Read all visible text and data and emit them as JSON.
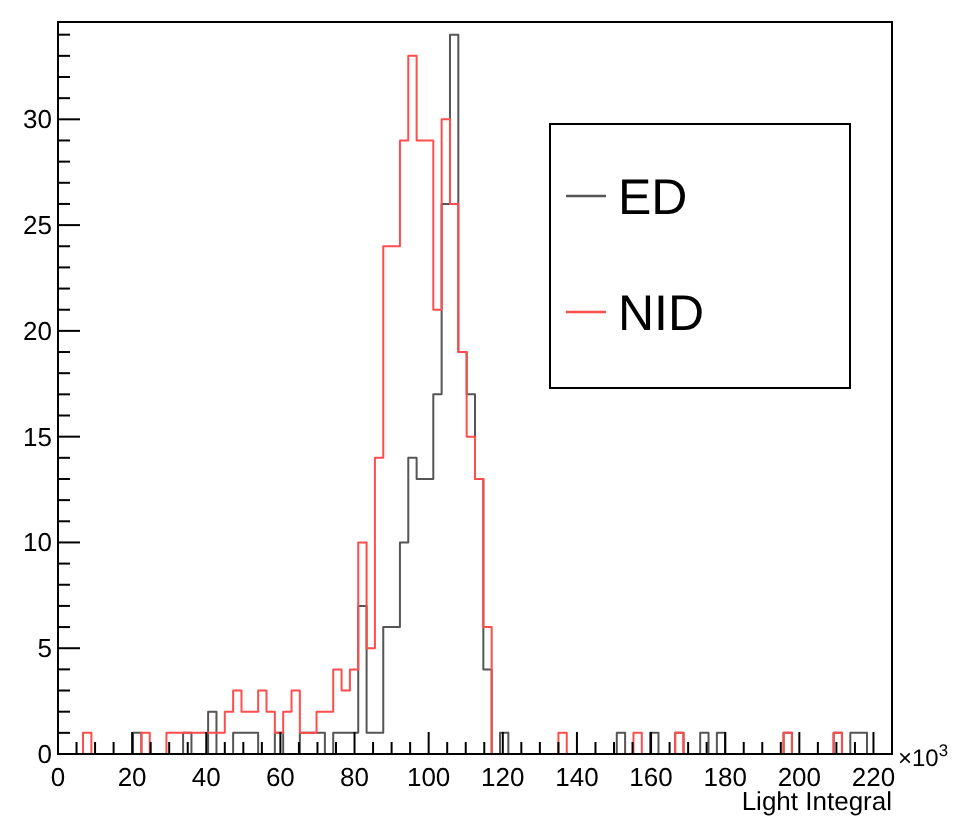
{
  "chart_data": {
    "type": "histogram",
    "xlabel": "Light Integral",
    "annotations": [
      "×10$^{3}$"
    ],
    "legend": "top right",
    "xlim": [
      0,
      225
    ],
    "ylim": [
      0,
      34.6
    ],
    "xticks": [
      0,
      {
        "value": 5,
        "label": null
      },
      {
        "value": 10,
        "label": null
      },
      {
        "value": 15,
        "label": null
      },
      20,
      {
        "value": 25,
        "label": null
      },
      {
        "value": 30,
        "label": null
      },
      {
        "value": 35,
        "label": null
      },
      40,
      {
        "value": 45,
        "label": null
      },
      {
        "value": 50,
        "label": null
      },
      {
        "value": 55,
        "label": null
      },
      60,
      {
        "value": 65,
        "label": null
      },
      {
        "value": 70,
        "label": null
      },
      {
        "value": 75,
        "label": null
      },
      80,
      {
        "value": 85,
        "label": null
      },
      {
        "value": 90,
        "label": null
      },
      {
        "value": 95,
        "label": null
      },
      100,
      {
        "value": 105,
        "label": null
      },
      {
        "value": 110,
        "label": null
      },
      {
        "value": 115,
        "label": null
      },
      120,
      {
        "value": 125,
        "label": null
      },
      {
        "value": 130,
        "label": null
      },
      {
        "value": 135,
        "label": null
      },
      140,
      {
        "value": 145,
        "label": null
      },
      {
        "value": 150,
        "label": null
      },
      {
        "value": 155,
        "label": null
      },
      160,
      {
        "value": 165,
        "label": null
      },
      {
        "value": 170,
        "label": null
      },
      {
        "value": 175,
        "label": null
      },
      180,
      {
        "value": 185,
        "label": null
      },
      {
        "value": 190,
        "label": null
      },
      {
        "value": 195,
        "label": null
      },
      200,
      {
        "value": 205,
        "label": null
      },
      {
        "value": 210,
        "label": null
      },
      {
        "value": 215,
        "label": null
      },
      220
    ],
    "yticks": [
      0,
      {
        "value": 1,
        "label": null
      },
      {
        "value": 2,
        "label": null
      },
      {
        "value": 3,
        "label": null
      },
      {
        "value": 4,
        "label": null
      },
      5,
      {
        "value": 6,
        "label": null
      },
      {
        "value": 7,
        "label": null
      },
      {
        "value": 8,
        "label": null
      },
      {
        "value": 9,
        "label": null
      },
      10,
      {
        "value": 11,
        "label": null
      },
      {
        "value": 12,
        "label": null
      },
      {
        "value": 13,
        "label": null
      },
      {
        "value": 14,
        "label": null
      },
      15,
      {
        "value": 16,
        "label": null
      },
      {
        "value": 17,
        "label": null
      },
      {
        "value": 18,
        "label": null
      },
      {
        "value": 19,
        "label": null
      },
      20,
      {
        "value": 21,
        "label": null
      },
      {
        "value": 22,
        "label": null
      },
      {
        "value": 23,
        "label": null
      },
      {
        "value": 24,
        "label": null
      },
      25,
      {
        "value": 26,
        "label": null
      },
      {
        "value": 27,
        "label": null
      },
      {
        "value": 28,
        "label": null
      },
      {
        "value": 29,
        "label": null
      },
      30,
      {
        "value": 31,
        "label": null
      },
      {
        "value": 32,
        "label": null
      },
      {
        "value": 33,
        "label": null
      },
      {
        "value": 34,
        "label": null
      }
    ],
    "bins": [
      0,
      2.25,
      4.5,
      6.75,
      9,
      11.25,
      13.5,
      15.75,
      18,
      20.25,
      22.5,
      24.75,
      27,
      29.25,
      31.5,
      33.75,
      36,
      38.25,
      40.5,
      42.75,
      45,
      47.25,
      49.5,
      51.75,
      54,
      56.25,
      58.5,
      60.75,
      63,
      65.25,
      67.5,
      69.75,
      72,
      74.25,
      76.5,
      78.75,
      81,
      83.25,
      85.5,
      87.75,
      90,
      92.25,
      94.5,
      96.75,
      99,
      101.25,
      103.5,
      105.75,
      108,
      110.25,
      112.5,
      114.75,
      117,
      119.25,
      121.5,
      123.75,
      126,
      128.25,
      130.5,
      132.75,
      135,
      137.25,
      139.5,
      141.75,
      144,
      146.25,
      148.5,
      150.75,
      153,
      155.25,
      157.5,
      159.75,
      162,
      164.25,
      166.5,
      168.75,
      171,
      173.25,
      175.5,
      177.75,
      180,
      182.25,
      184.5,
      186.75,
      189,
      191.25,
      193.5,
      195.75,
      198,
      200.25,
      202.5,
      204.75,
      207,
      209.25,
      211.5,
      213.75,
      216,
      218.25,
      220.5,
      222.75,
      225
    ],
    "series": [
      {
        "name": "ED",
        "color": "#555555",
        "values": [
          0,
          0,
          0,
          0,
          0,
          0,
          0,
          0,
          0,
          1,
          0,
          0,
          0,
          0,
          0,
          1,
          0,
          0,
          2,
          0,
          0,
          1,
          1,
          1,
          0,
          0,
          1,
          0,
          0,
          1,
          1,
          1,
          0,
          1,
          1,
          1,
          7,
          1,
          1,
          6,
          6,
          10,
          14,
          13,
          13,
          17,
          26,
          34,
          19,
          17,
          13,
          4,
          0,
          1,
          0,
          0,
          0,
          0,
          0,
          0,
          0,
          0,
          0,
          0,
          0,
          0,
          0,
          1,
          0,
          0,
          0,
          1,
          0,
          0,
          1,
          0,
          0,
          1,
          0,
          1,
          0,
          0,
          0,
          0,
          0,
          0,
          0,
          1,
          0,
          0,
          0,
          0,
          0,
          1,
          0,
          1,
          1,
          0,
          0,
          0
        ]
      },
      {
        "name": "NID",
        "color": "#ff4d4d",
        "values": [
          0,
          0,
          0,
          1,
          0,
          0,
          0,
          0,
          0,
          0,
          1,
          0,
          0,
          1,
          1,
          1,
          1,
          1,
          1,
          1,
          2,
          3,
          2,
          2,
          3,
          2,
          1,
          2,
          3,
          1,
          1,
          2,
          2,
          4,
          3,
          4,
          10,
          5,
          14,
          24,
          24,
          29,
          33,
          29,
          29,
          21,
          30,
          26,
          19,
          15,
          13,
          6,
          0,
          0,
          0,
          0,
          0,
          0,
          0,
          0,
          1,
          0,
          0,
          0,
          0,
          0,
          0,
          0,
          0,
          1,
          0,
          0,
          0,
          0,
          1,
          0,
          0,
          0,
          0,
          0,
          0,
          0,
          0,
          0,
          0,
          0,
          0,
          1,
          0,
          0,
          0,
          0,
          0,
          1,
          0,
          0,
          0,
          0,
          0,
          0
        ]
      }
    ]
  }
}
